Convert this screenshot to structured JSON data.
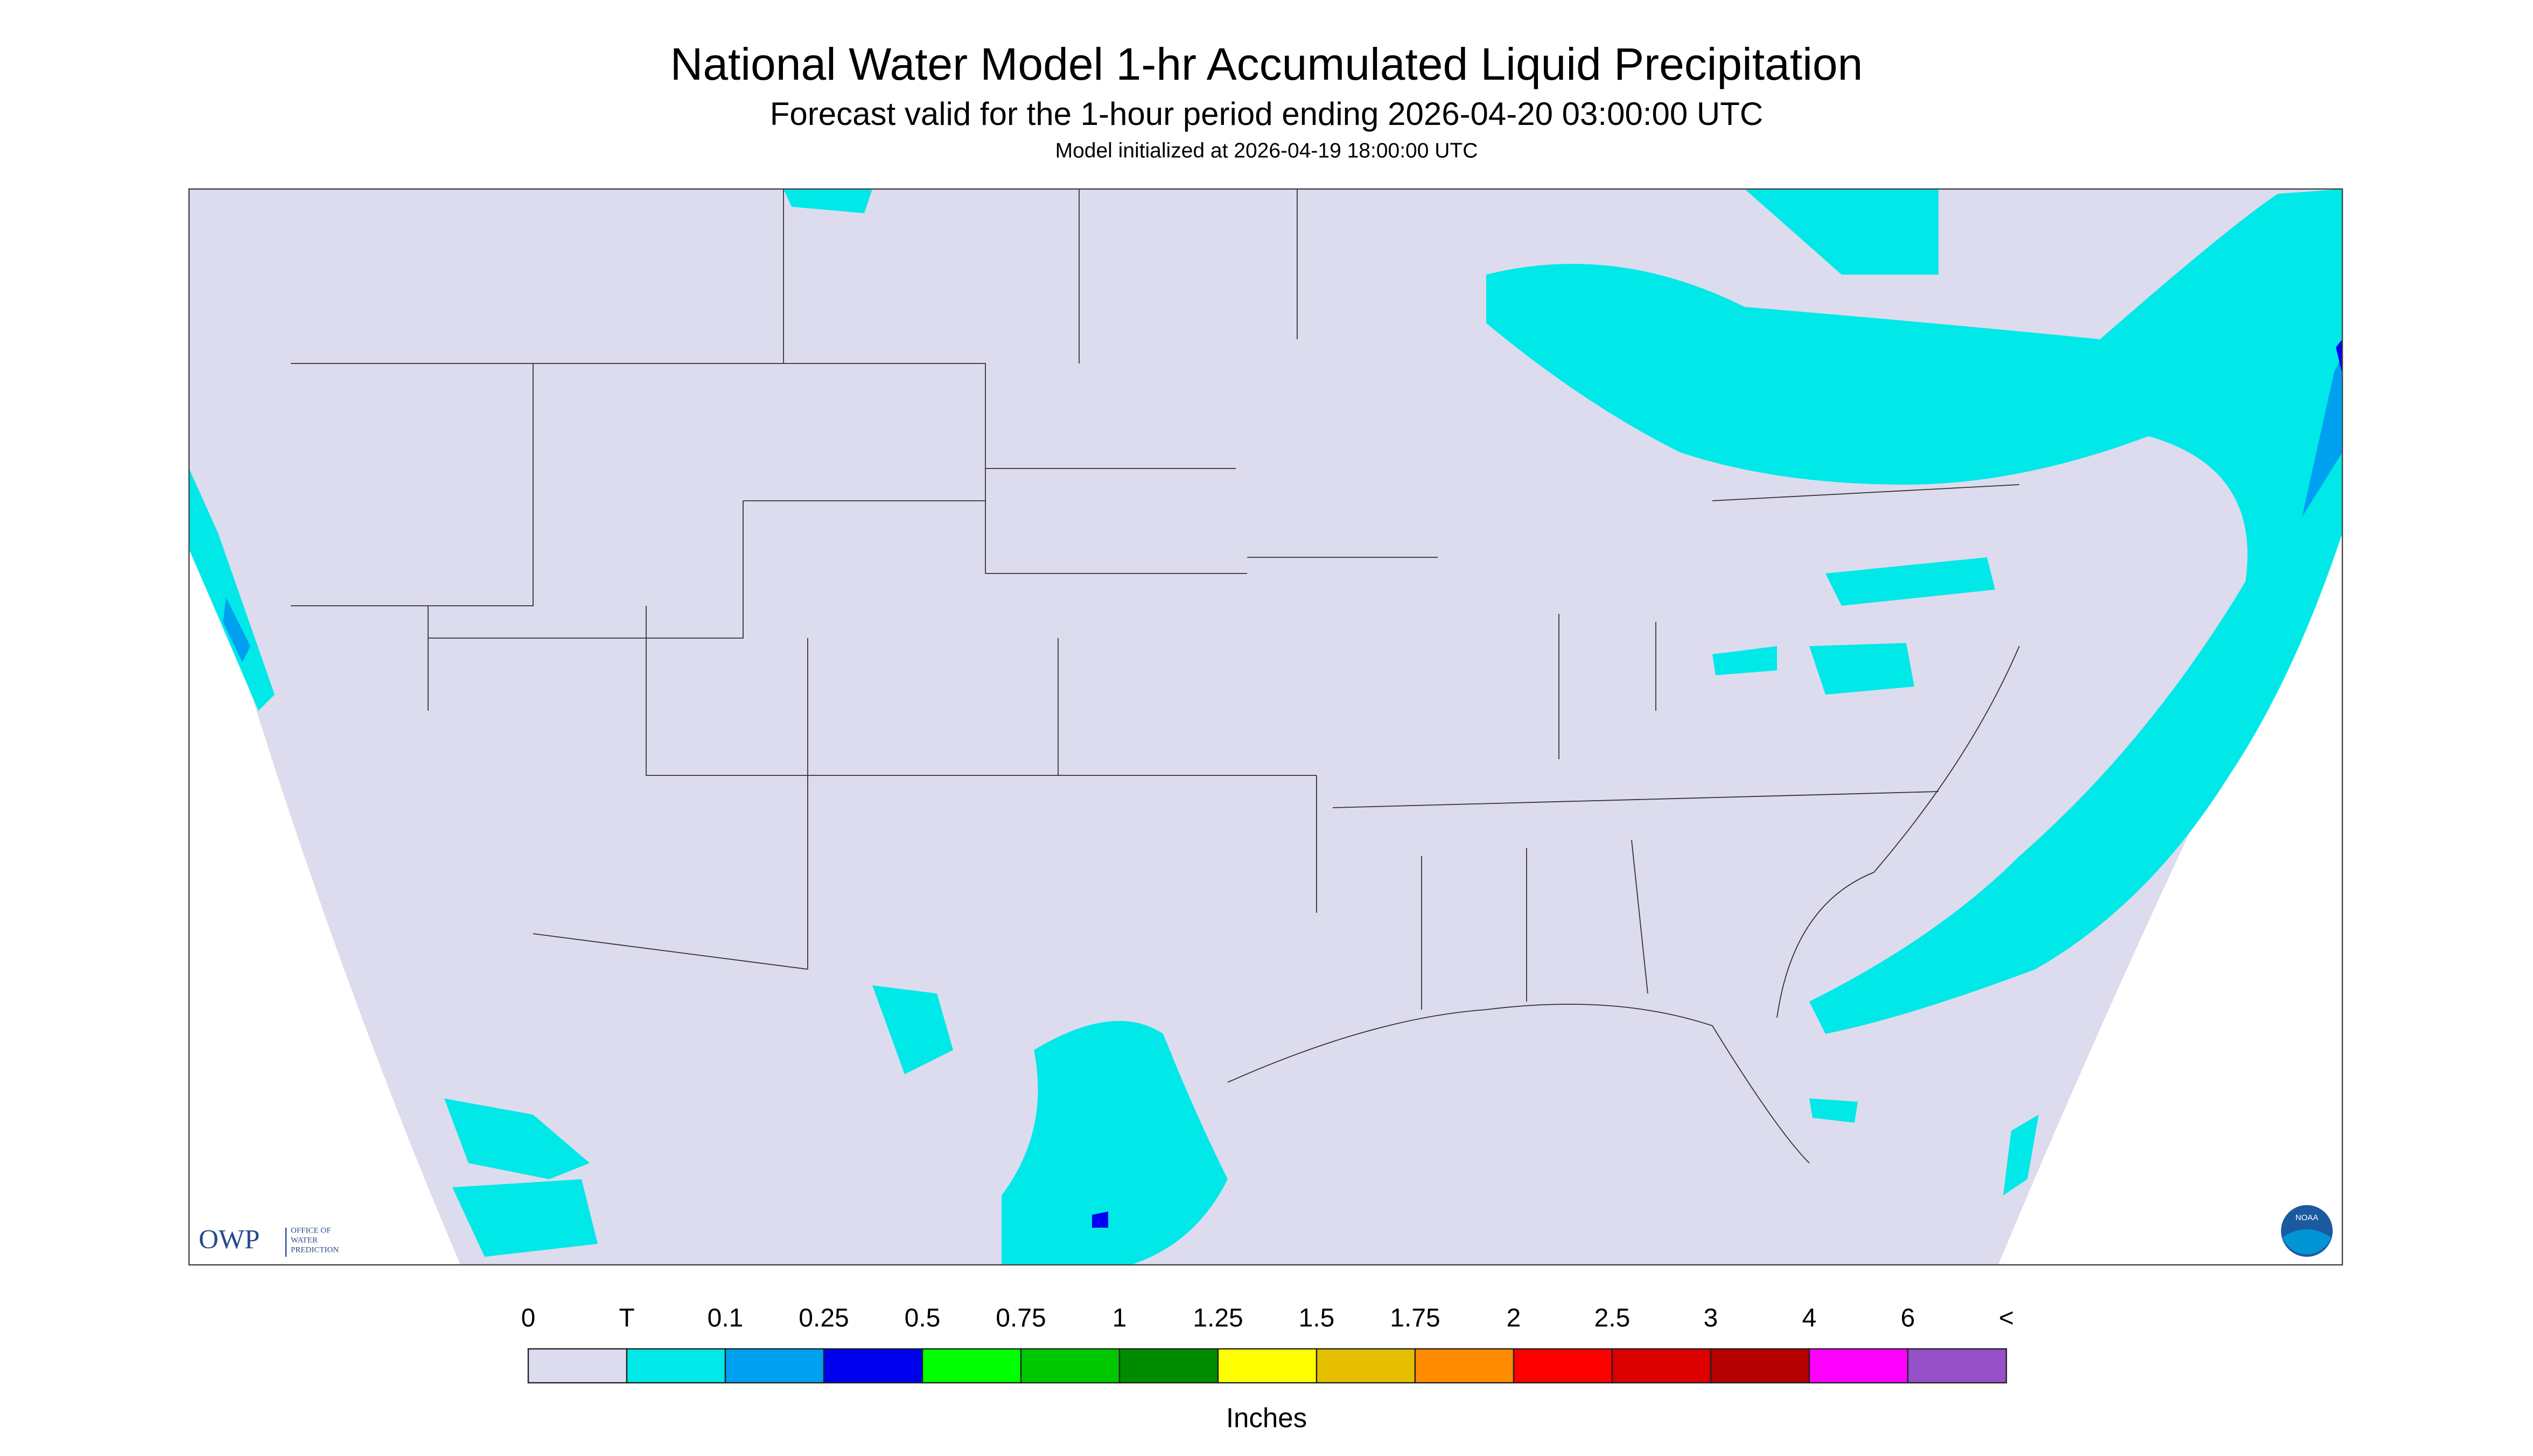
{
  "header": {
    "title": "National Water Model 1-hr Accumulated Liquid Precipitation",
    "subtitle": "Forecast valid for the 1-hour period ending 2026-04-20 03:00:00 UTC",
    "init": "Model initialized at 2026-04-19 18:00:00 UTC"
  },
  "logo": {
    "owp": "OWP",
    "office": [
      "OFFICE OF",
      "WATER",
      "PREDICTION"
    ],
    "noaa": "NOAA"
  },
  "legend": {
    "labels": [
      "0",
      "T",
      "0.1",
      "0.25",
      "0.5",
      "0.75",
      "1",
      "1.25",
      "1.5",
      "1.75",
      "2",
      "2.5",
      "3",
      "4",
      "6",
      "<"
    ],
    "colors": [
      "#dcdcee",
      "#00e8e8",
      "#00a0f0",
      "#0000f0",
      "#00ff00",
      "#00c800",
      "#008c00",
      "#ffff00",
      "#e6be00",
      "#ff8c00",
      "#ff0000",
      "#dc0000",
      "#b40000",
      "#ff00ff",
      "#9650c8"
    ],
    "unit": "Inches"
  }
}
